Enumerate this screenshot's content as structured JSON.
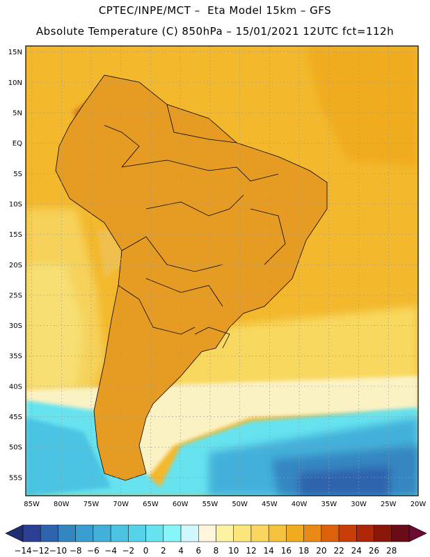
{
  "header": {
    "line1": "CPTEC/INPE/MCT –  Eta Model 15km – GFS",
    "line2": "Absolute Temperature (C) 850hPa – 15/01/2021 12UTC fct=112h"
  },
  "map": {
    "lat_labels": [
      "15N",
      "10N",
      "5N",
      "EQ",
      "5S",
      "10S",
      "15S",
      "20S",
      "25S",
      "30S",
      "35S",
      "40S",
      "45S",
      "50S",
      "55S"
    ],
    "lon_labels": [
      "85W",
      "80W",
      "75W",
      "70W",
      "65W",
      "60W",
      "55W",
      "50W",
      "45W",
      "40W",
      "35W",
      "30W",
      "25W",
      "20W"
    ],
    "extent": {
      "lon_min": -86,
      "lon_max": -20,
      "lat_min": -58,
      "lat_max": 16
    },
    "colors": {
      "ocean_warm": "#f2b52a",
      "land_warm": "#e8a023",
      "hot": "#dc5a10",
      "mild": "#f5d865",
      "cool": "#5ad8e6",
      "cold": "#3a9ed0",
      "very_cold": "#2b72b8"
    }
  },
  "colorbar": {
    "labels": [
      "-14",
      "-12",
      "-10",
      "-8",
      "-6",
      "-4",
      "-2",
      "0",
      "2",
      "4",
      "6",
      "8",
      "10",
      "12",
      "14",
      "16",
      "18",
      "20",
      "22",
      "24",
      "26",
      "28"
    ],
    "colors": [
      "#2b3f94",
      "#2f63ad",
      "#3486c1",
      "#3a9ed0",
      "#43b0da",
      "#4cc3e3",
      "#56d2e9",
      "#66e3ef",
      "#86f6f8",
      "#d0f8fc",
      "#fdf6dc",
      "#fcf2a4",
      "#fbe67b",
      "#f9d660",
      "#f3c23e",
      "#f0ac1e",
      "#e78a16",
      "#dd600d",
      "#c93e08",
      "#ae2608",
      "#8a170a",
      "#6a0b18"
    ],
    "left_arrow": "#1e2e70",
    "right_arrow": "#6d0a33"
  }
}
